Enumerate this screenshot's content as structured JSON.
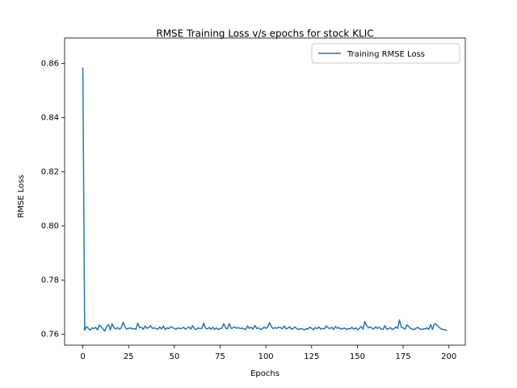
{
  "chart_data": {
    "type": "line",
    "title": "RMSE Training Loss v/s epochs for stock KLIC",
    "x_label": "Epochs",
    "y_label": "RMSE Loss",
    "x": [
      0,
      1,
      2,
      3,
      4,
      5,
      6,
      7,
      8,
      9,
      10,
      11,
      12,
      13,
      14,
      15,
      16,
      17,
      18,
      19,
      20,
      21,
      22,
      23,
      24,
      25,
      26,
      27,
      28,
      29,
      30,
      31,
      32,
      33,
      34,
      35,
      36,
      37,
      38,
      39,
      40,
      41,
      42,
      43,
      44,
      45,
      46,
      47,
      48,
      49,
      50,
      51,
      52,
      53,
      54,
      55,
      56,
      57,
      58,
      59,
      60,
      61,
      62,
      63,
      64,
      65,
      66,
      67,
      68,
      69,
      70,
      71,
      72,
      73,
      74,
      75,
      76,
      77,
      78,
      79,
      80,
      81,
      82,
      83,
      84,
      85,
      86,
      87,
      88,
      89,
      90,
      91,
      92,
      93,
      94,
      95,
      96,
      97,
      98,
      99,
      100,
      101,
      102,
      103,
      104,
      105,
      106,
      107,
      108,
      109,
      110,
      111,
      112,
      113,
      114,
      115,
      116,
      117,
      118,
      119,
      120,
      121,
      122,
      123,
      124,
      125,
      126,
      127,
      128,
      129,
      130,
      131,
      132,
      133,
      134,
      135,
      136,
      137,
      138,
      139,
      140,
      141,
      142,
      143,
      144,
      145,
      146,
      147,
      148,
      149,
      150,
      151,
      152,
      153,
      154,
      155,
      156,
      157,
      158,
      159,
      160,
      161,
      162,
      163,
      164,
      165,
      166,
      167,
      168,
      169,
      170,
      171,
      172,
      173,
      174,
      175,
      176,
      177,
      178,
      179,
      180,
      181,
      182,
      183,
      184,
      185,
      186,
      187,
      188,
      189,
      190,
      191,
      192,
      193,
      194,
      195,
      196,
      197,
      198,
      199
    ],
    "series": [
      {
        "name": "Training RMSE Loss",
        "color": "#1f77b4",
        "values": [
          0.8585,
          0.7615,
          0.7628,
          0.7622,
          0.7615,
          0.7624,
          0.7621,
          0.7626,
          0.7616,
          0.7634,
          0.7628,
          0.762,
          0.7612,
          0.7629,
          0.7636,
          0.7616,
          0.7639,
          0.7624,
          0.762,
          0.7625,
          0.7619,
          0.7624,
          0.7645,
          0.7628,
          0.7619,
          0.7622,
          0.7624,
          0.762,
          0.7622,
          0.7618,
          0.7641,
          0.7624,
          0.7626,
          0.7618,
          0.7631,
          0.7622,
          0.7625,
          0.7632,
          0.7622,
          0.7624,
          0.7621,
          0.7619,
          0.7627,
          0.762,
          0.7631,
          0.7618,
          0.7624,
          0.7621,
          0.7628,
          0.7625,
          0.7621,
          0.7619,
          0.7624,
          0.7621,
          0.7622,
          0.7626,
          0.7619,
          0.7623,
          0.7627,
          0.7619,
          0.7632,
          0.762,
          0.7618,
          0.7624,
          0.7621,
          0.7622,
          0.7641,
          0.7623,
          0.762,
          0.7625,
          0.7619,
          0.7626,
          0.7618,
          0.7624,
          0.7617,
          0.7622,
          0.7623,
          0.7639,
          0.7624,
          0.762,
          0.764,
          0.7622,
          0.7624,
          0.7628,
          0.7622,
          0.7625,
          0.7621,
          0.7623,
          0.762,
          0.7618,
          0.7631,
          0.7622,
          0.7626,
          0.7619,
          0.7633,
          0.7621,
          0.7624,
          0.7618,
          0.762,
          0.7627,
          0.7622,
          0.7627,
          0.7643,
          0.7628,
          0.7621,
          0.7625,
          0.7622,
          0.7626,
          0.7625,
          0.762,
          0.7631,
          0.762,
          0.7623,
          0.7628,
          0.7619,
          0.7622,
          0.7627,
          0.762,
          0.7618,
          0.7621,
          0.762,
          0.7616,
          0.7621,
          0.7619,
          0.7627,
          0.7622,
          0.7617,
          0.7625,
          0.7621,
          0.7627,
          0.7619,
          0.7622,
          0.762,
          0.7631,
          0.7624,
          0.7621,
          0.7626,
          0.7618,
          0.7629,
          0.7622,
          0.7625,
          0.7619,
          0.7621,
          0.7623,
          0.7618,
          0.7621,
          0.762,
          0.7626,
          0.7619,
          0.7624,
          0.7617,
          0.7621,
          0.7629,
          0.7619,
          0.7647,
          0.7633,
          0.7624,
          0.7628,
          0.7622,
          0.762,
          0.7628,
          0.7622,
          0.7626,
          0.7619,
          0.7618,
          0.7632,
          0.7619,
          0.762,
          0.7625,
          0.7618,
          0.7621,
          0.7627,
          0.7622,
          0.7653,
          0.7626,
          0.7624,
          0.7619,
          0.7635,
          0.7629,
          0.7622,
          0.762,
          0.7617,
          0.7622,
          0.7626,
          0.762,
          0.7618,
          0.762,
          0.762,
          0.7624,
          0.7618,
          0.7636,
          0.7618,
          0.7638,
          0.7638,
          0.763,
          0.7624,
          0.7619,
          0.7618,
          0.7616,
          0.7615
        ]
      }
    ],
    "xlim": [
      -9.95,
      208.95
    ],
    "xticks": [
      0,
      25,
      50,
      75,
      100,
      125,
      150,
      175,
      200
    ],
    "ylim": [
      0.756,
      0.8661
    ],
    "yticks": [
      0.76,
      0.78,
      {
        "value": 0.8,
        "label": "0.80"
      },
      0.82,
      0.84,
      0.86
    ],
    "grid": false,
    "legend": "upper right"
  }
}
